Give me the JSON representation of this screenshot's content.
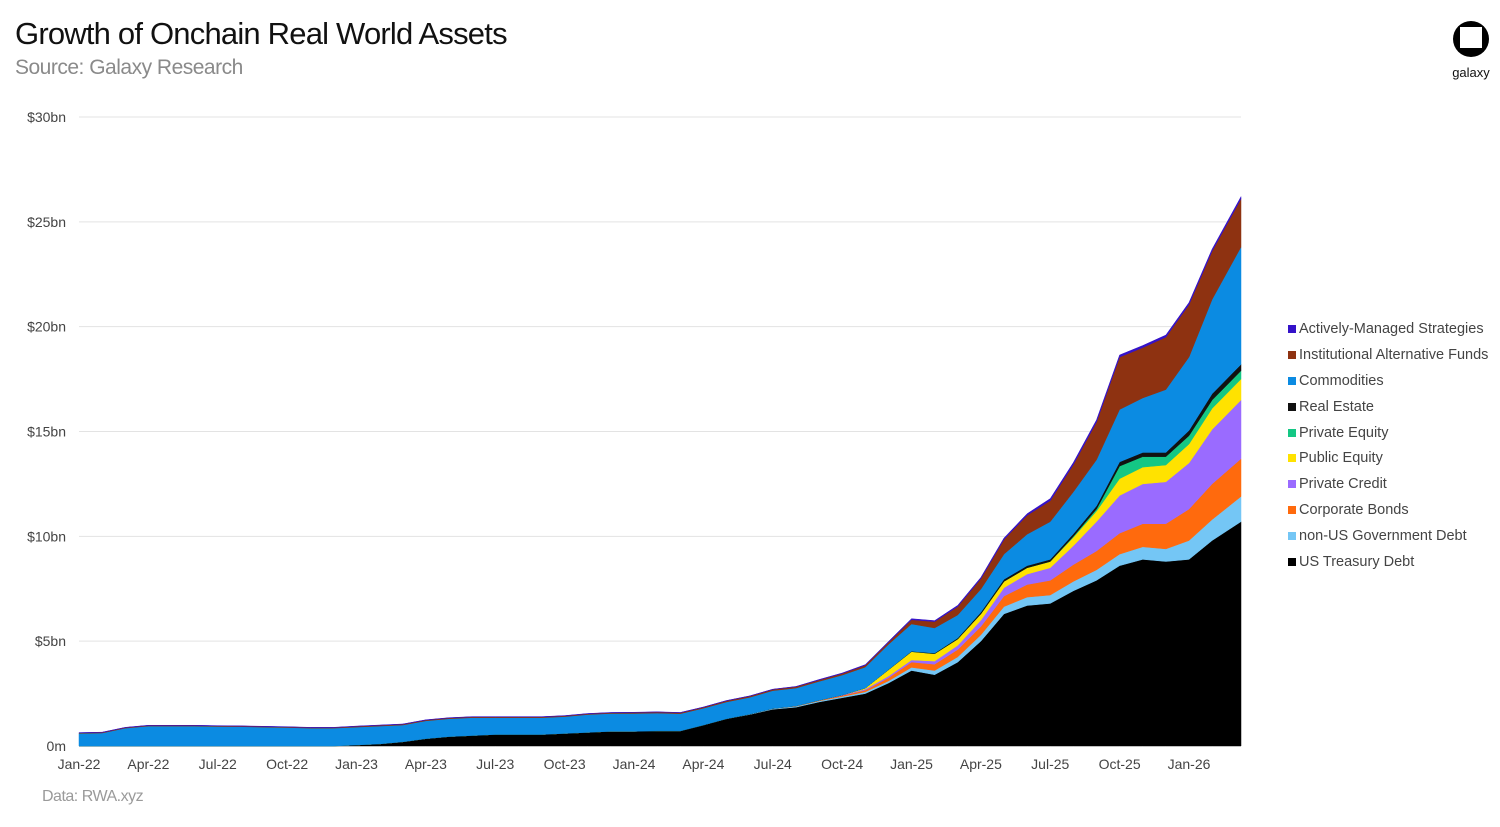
{
  "header": {
    "title": "Growth of Onchain Real World Assets",
    "subtitle": "Source: Galaxy Research"
  },
  "logo": {
    "text": "galaxy",
    "icon": "galaxy-logo-icon"
  },
  "footer": {
    "source": "Data: RWA.xyz"
  },
  "chart_data": {
    "type": "area",
    "stacked": true,
    "title": "Growth of Onchain Real World Assets",
    "xlabel": "",
    "ylabel": "",
    "ylim": [
      0,
      30
    ],
    "y_unit": "$bn",
    "grid": true,
    "legend_position": "right",
    "y_ticks": [
      {
        "value": 0,
        "label": "0m"
      },
      {
        "value": 5,
        "label": "$5bn"
      },
      {
        "value": 10,
        "label": "$10bn"
      },
      {
        "value": 15,
        "label": "$15bn"
      },
      {
        "value": 20,
        "label": "$20bn"
      },
      {
        "value": 25,
        "label": "$25bn"
      },
      {
        "value": 30,
        "label": "$30bn"
      }
    ],
    "x_ticks": [
      "Jan-22",
      "Apr-22",
      "Jul-22",
      "Oct-22",
      "Jan-23",
      "Apr-23",
      "Jul-23",
      "Oct-23",
      "Jan-24",
      "Apr-24",
      "Jul-24",
      "Oct-24",
      "Jan-25",
      "Apr-25",
      "Jul-25",
      "Oct-25",
      "Jan-26"
    ],
    "x": [
      "2022-01",
      "2022-02",
      "2022-03",
      "2022-04",
      "2022-05",
      "2022-06",
      "2022-07",
      "2022-08",
      "2022-09",
      "2022-10",
      "2022-11",
      "2022-12",
      "2023-01",
      "2023-02",
      "2023-03",
      "2023-04",
      "2023-05",
      "2023-06",
      "2023-07",
      "2023-08",
      "2023-09",
      "2023-10",
      "2023-11",
      "2023-12",
      "2024-01",
      "2024-02",
      "2024-03",
      "2024-04",
      "2024-05",
      "2024-06",
      "2024-07",
      "2024-08",
      "2024-09",
      "2024-10",
      "2024-11",
      "2024-12",
      "2025-01",
      "2025-02",
      "2025-03",
      "2025-04",
      "2025-05",
      "2025-06",
      "2025-07",
      "2025-08",
      "2025-09",
      "2025-10",
      "2025-11",
      "2025-12",
      "2026-01",
      "2026-02",
      "2026-03"
    ],
    "series": [
      {
        "name": "US Treasury Debt",
        "color": "#000000",
        "values": [
          0,
          0,
          0,
          0,
          0,
          0,
          0,
          0,
          0,
          0,
          0,
          0,
          0.05,
          0.1,
          0.2,
          0.35,
          0.45,
          0.5,
          0.55,
          0.55,
          0.55,
          0.6,
          0.65,
          0.7,
          0.7,
          0.72,
          0.72,
          1.0,
          1.3,
          1.5,
          1.75,
          1.85,
          2.1,
          2.3,
          2.5,
          3.0,
          3.6,
          3.4,
          4.0,
          5.0,
          6.3,
          6.7,
          6.8,
          7.4,
          7.9,
          8.6,
          8.9,
          8.8,
          8.9,
          9.8,
          10.7
        ]
      },
      {
        "name": "non-US Government Debt",
        "color": "#74c6f5",
        "values": [
          0,
          0,
          0,
          0,
          0,
          0,
          0,
          0,
          0,
          0,
          0,
          0,
          0,
          0,
          0,
          0,
          0,
          0,
          0,
          0,
          0,
          0,
          0,
          0,
          0,
          0,
          0,
          0,
          0,
          0.02,
          0.03,
          0.04,
          0.05,
          0.06,
          0.08,
          0.1,
          0.15,
          0.2,
          0.25,
          0.3,
          0.35,
          0.4,
          0.4,
          0.45,
          0.5,
          0.55,
          0.6,
          0.6,
          0.9,
          1.0,
          1.2
        ]
      },
      {
        "name": "Corporate Bonds",
        "color": "#ff6a0d",
        "values": [
          0,
          0,
          0,
          0,
          0,
          0,
          0,
          0,
          0,
          0,
          0,
          0,
          0,
          0,
          0,
          0,
          0,
          0,
          0,
          0,
          0,
          0,
          0,
          0,
          0,
          0,
          0,
          0,
          0,
          0,
          0.01,
          0.02,
          0.03,
          0.05,
          0.08,
          0.15,
          0.25,
          0.3,
          0.35,
          0.4,
          0.5,
          0.6,
          0.7,
          0.8,
          0.9,
          1.0,
          1.1,
          1.2,
          1.5,
          1.7,
          1.8
        ]
      },
      {
        "name": "Private Credit",
        "color": "#9a6bff",
        "values": [
          0,
          0,
          0,
          0,
          0,
          0,
          0,
          0,
          0,
          0,
          0,
          0,
          0,
          0,
          0,
          0,
          0,
          0,
          0,
          0,
          0,
          0,
          0,
          0,
          0,
          0,
          0,
          0,
          0,
          0,
          0,
          0,
          0,
          0.02,
          0.05,
          0.08,
          0.1,
          0.15,
          0.2,
          0.3,
          0.4,
          0.5,
          0.6,
          0.9,
          1.4,
          1.8,
          1.9,
          2.0,
          2.2,
          2.6,
          2.8
        ]
      },
      {
        "name": "Public Equity",
        "color": "#ffe200",
        "values": [
          0,
          0,
          0,
          0,
          0,
          0,
          0,
          0,
          0,
          0,
          0,
          0,
          0,
          0,
          0,
          0,
          0,
          0,
          0,
          0,
          0,
          0,
          0,
          0,
          0,
          0,
          0,
          0,
          0,
          0,
          0,
          0,
          0,
          0,
          0.05,
          0.3,
          0.4,
          0.35,
          0.3,
          0.3,
          0.3,
          0.3,
          0.3,
          0.4,
          0.5,
          0.8,
          0.8,
          0.8,
          0.9,
          1.0,
          1.0
        ]
      },
      {
        "name": "Private Equity",
        "color": "#14c784",
        "values": [
          0,
          0,
          0,
          0,
          0,
          0,
          0,
          0,
          0,
          0,
          0,
          0,
          0,
          0,
          0,
          0,
          0,
          0,
          0,
          0,
          0,
          0,
          0,
          0,
          0,
          0,
          0,
          0,
          0,
          0,
          0,
          0,
          0,
          0,
          0,
          0,
          0,
          0,
          0,
          0,
          0,
          0,
          0,
          0.05,
          0.1,
          0.6,
          0.5,
          0.4,
          0.4,
          0.4,
          0.4
        ]
      },
      {
        "name": "Real Estate",
        "color": "#111111",
        "values": [
          0,
          0,
          0,
          0,
          0,
          0,
          0,
          0,
          0,
          0,
          0,
          0,
          0,
          0,
          0,
          0,
          0,
          0,
          0,
          0,
          0,
          0,
          0,
          0,
          0,
          0,
          0,
          0,
          0,
          0,
          0,
          0,
          0,
          0,
          0,
          0.01,
          0.02,
          0.03,
          0.05,
          0.08,
          0.1,
          0.1,
          0.1,
          0.12,
          0.15,
          0.2,
          0.2,
          0.2,
          0.25,
          0.3,
          0.3
        ]
      },
      {
        "name": "Commodities",
        "color": "#0b8be2",
        "values": [
          0.6,
          0.62,
          0.85,
          0.95,
          0.95,
          0.95,
          0.93,
          0.92,
          0.9,
          0.88,
          0.85,
          0.85,
          0.85,
          0.85,
          0.8,
          0.85,
          0.85,
          0.85,
          0.8,
          0.8,
          0.8,
          0.8,
          0.85,
          0.85,
          0.85,
          0.85,
          0.82,
          0.8,
          0.8,
          0.8,
          0.85,
          0.85,
          0.9,
          0.95,
          1.0,
          1.2,
          1.3,
          1.2,
          1.1,
          1.1,
          1.2,
          1.5,
          1.8,
          2.0,
          2.2,
          2.5,
          2.6,
          3.0,
          3.5,
          4.5,
          5.6
        ]
      },
      {
        "name": "Institutional Alternative Funds",
        "color": "#8e3211",
        "values": [
          0.03,
          0.03,
          0.03,
          0.03,
          0.03,
          0.03,
          0.03,
          0.03,
          0.03,
          0.03,
          0.03,
          0.03,
          0.04,
          0.04,
          0.04,
          0.04,
          0.04,
          0.04,
          0.04,
          0.04,
          0.04,
          0.04,
          0.04,
          0.04,
          0.05,
          0.05,
          0.05,
          0.05,
          0.06,
          0.06,
          0.06,
          0.07,
          0.07,
          0.08,
          0.09,
          0.1,
          0.2,
          0.3,
          0.4,
          0.5,
          0.7,
          0.9,
          1.0,
          1.3,
          1.8,
          2.5,
          2.4,
          2.5,
          2.5,
          2.3,
          2.3
        ]
      },
      {
        "name": "Actively-Managed Strategies",
        "color": "#3412c9",
        "values": [
          0.01,
          0.01,
          0.01,
          0.01,
          0.01,
          0.01,
          0.01,
          0.01,
          0.01,
          0.01,
          0.01,
          0.01,
          0.01,
          0.01,
          0.01,
          0.01,
          0.01,
          0.01,
          0.01,
          0.01,
          0.01,
          0.01,
          0.01,
          0.01,
          0.01,
          0.01,
          0.01,
          0.01,
          0.01,
          0.01,
          0.01,
          0.01,
          0.02,
          0.02,
          0.03,
          0.04,
          0.05,
          0.05,
          0.06,
          0.06,
          0.07,
          0.08,
          0.1,
          0.1,
          0.1,
          0.1,
          0.1,
          0.1,
          0.1,
          0.1,
          0.1
        ]
      }
    ]
  }
}
